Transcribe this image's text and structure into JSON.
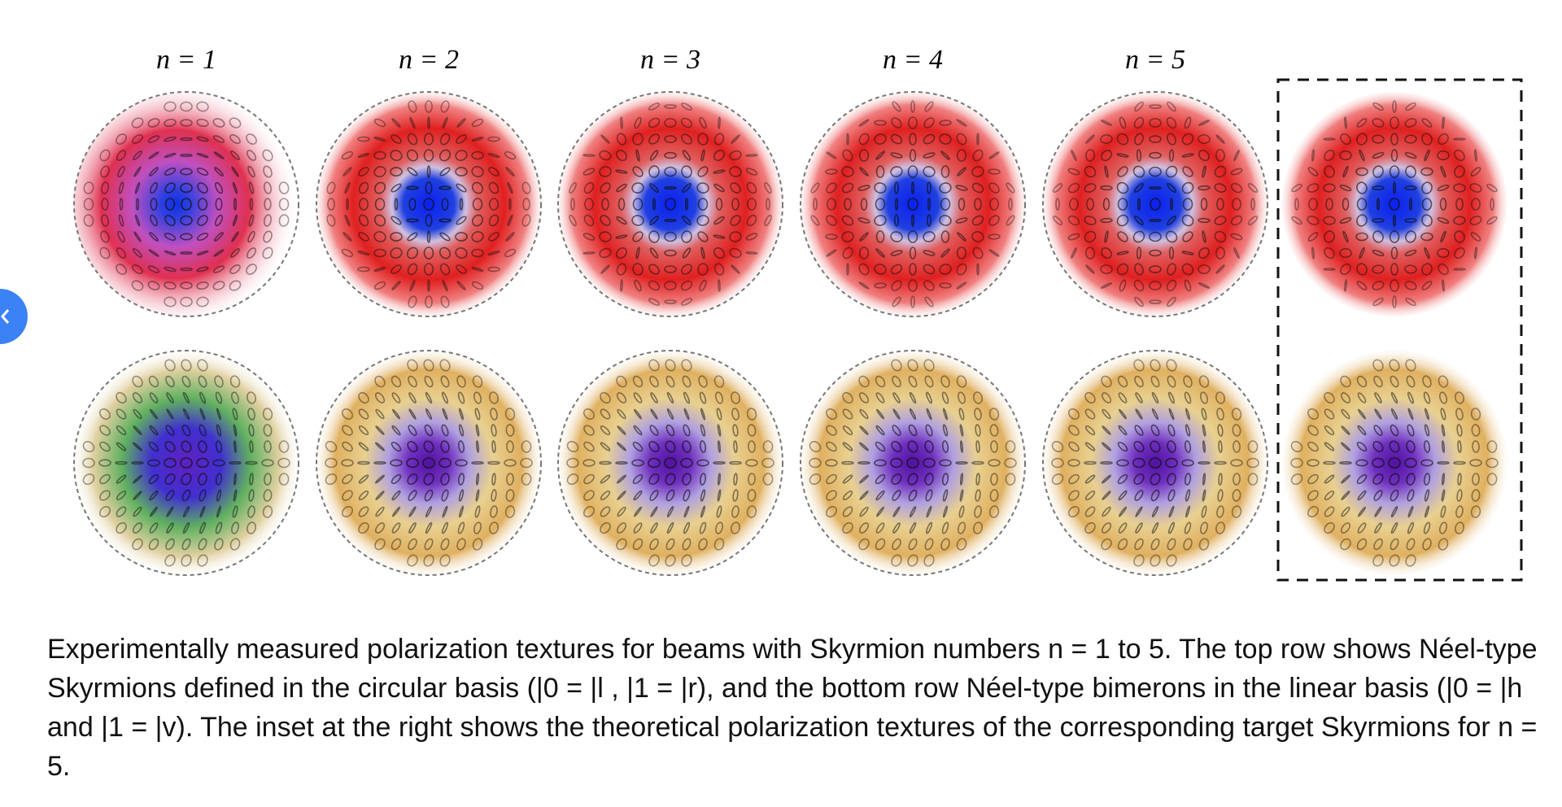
{
  "figure": {
    "column_labels": [
      "n = 1",
      "n = 2",
      "n = 3",
      "n = 4",
      "n = 5"
    ]
  },
  "caption": "Experimentally measured polarization textures for beams with Skyrmion numbers n = 1 to 5. The top row shows Néel-type Skyrmions defined in the circular basis (|0 = |l , |1 = |r), and the bottom row Néel-type bimerons in the linear basis (|0 = |h and |1 = |v). The inset at the right shows the theoretical polarization textures of the corresponding target Skyrmions for n = 5."
}
